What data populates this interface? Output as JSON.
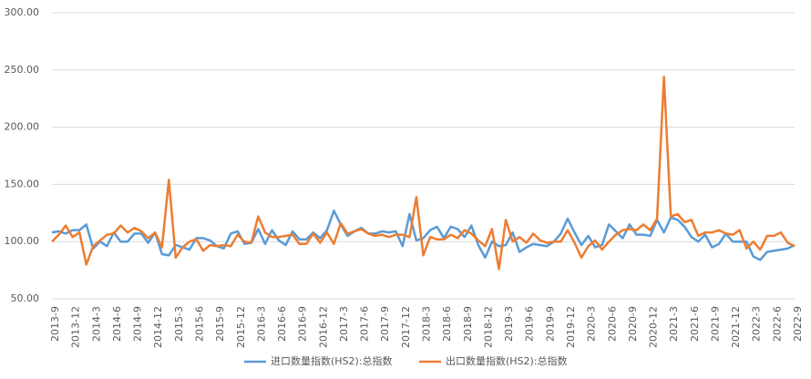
{
  "chart_data": {
    "type": "line",
    "categories": [
      "2013-9",
      null,
      null,
      "2013-12",
      null,
      null,
      "2014-3",
      null,
      null,
      "2014-6",
      null,
      null,
      "2014-9",
      null,
      null,
      "2014-12",
      null,
      null,
      "2015-3",
      null,
      null,
      "2015-6",
      null,
      null,
      "2015-9",
      null,
      null,
      "2015-12",
      null,
      null,
      "2016-3",
      null,
      null,
      "2016-6",
      null,
      null,
      "2016-9",
      null,
      null,
      "2016-12",
      null,
      null,
      "2017-3",
      null,
      null,
      "2017-6",
      null,
      null,
      "2017-9",
      null,
      null,
      "2017-12",
      null,
      null,
      "2018-3",
      null,
      null,
      "2018-6",
      null,
      null,
      "2018-9",
      null,
      null,
      "2018-12",
      null,
      null,
      "2019-3",
      null,
      null,
      "2019-6",
      null,
      null,
      "2019-9",
      null,
      null,
      "2019-12",
      null,
      null,
      "2020-3",
      null,
      null,
      "2020-6",
      null,
      null,
      "2020-9",
      null,
      null,
      "2020-12",
      null,
      null,
      "2021-3",
      null,
      null,
      "2021-6",
      null,
      null,
      "2021-9",
      null,
      null,
      "2021-12",
      null,
      null,
      "2022-3",
      null,
      null,
      "2022-6",
      null,
      null,
      "2022-9"
    ],
    "series": [
      {
        "name": "进口数量指数(HS2):总指数",
        "color": "#5b9bd5",
        "values": [
          108,
          109,
          107,
          110,
          110,
          115,
          94,
          100,
          96,
          108,
          100,
          100,
          107,
          107,
          99,
          108,
          89,
          88,
          97,
          95,
          93,
          103,
          103,
          101,
          96,
          94,
          107,
          109,
          98,
          99,
          111,
          98,
          110,
          101,
          97,
          109,
          102,
          102,
          108,
          103,
          110,
          127,
          115,
          105,
          109,
          112,
          107,
          107,
          109,
          108,
          109,
          96,
          124,
          101,
          103,
          110,
          113,
          103,
          113,
          111,
          104,
          114,
          97,
          86,
          100,
          96,
          97,
          108,
          91,
          95,
          98,
          97,
          96,
          100,
          107,
          120,
          108,
          97,
          105,
          95,
          97,
          115,
          109,
          103,
          115,
          106,
          106,
          105,
          119,
          108,
          121,
          119,
          113,
          104,
          100,
          106,
          95,
          98,
          107,
          100,
          100,
          100,
          87,
          84,
          91,
          92,
          93,
          94,
          97
        ]
      },
      {
        "name": "出口数量指数(HS2):总指数",
        "color": "#ed7d31",
        "values": [
          100,
          106,
          114,
          104,
          108,
          80,
          96,
          101,
          106,
          107,
          114,
          108,
          112,
          109,
          103,
          108,
          95,
          154,
          86,
          95,
          100,
          102,
          92,
          97,
          96,
          97,
          96,
          106,
          100,
          99,
          122,
          108,
          104,
          104,
          105,
          106,
          98,
          98,
          107,
          99,
          108,
          98,
          116,
          107,
          109,
          111,
          107,
          105,
          106,
          104,
          106,
          106,
          104,
          139,
          88,
          104,
          102,
          102,
          106,
          103,
          110,
          107,
          101,
          96,
          111,
          76,
          119,
          100,
          104,
          99,
          107,
          101,
          99,
          100,
          100,
          110,
          99,
          86,
          96,
          101,
          93,
          100,
          106,
          110,
          111,
          110,
          115,
          110,
          120,
          244,
          122,
          124,
          117,
          119,
          105,
          108,
          108,
          110,
          107,
          106,
          110,
          94,
          100,
          93,
          105,
          105,
          108,
          99,
          96
        ]
      }
    ],
    "ylim": [
      50,
      300
    ],
    "yticks": [
      {
        "value": 50,
        "label": "50.00"
      },
      {
        "value": 100,
        "label": "100.00"
      },
      {
        "value": 150,
        "label": "150.00"
      },
      {
        "value": 200,
        "label": "200.00"
      },
      {
        "value": 250,
        "label": "250.00"
      },
      {
        "value": 300,
        "label": "300.00"
      }
    ],
    "grid": true,
    "legend": "bottom"
  }
}
